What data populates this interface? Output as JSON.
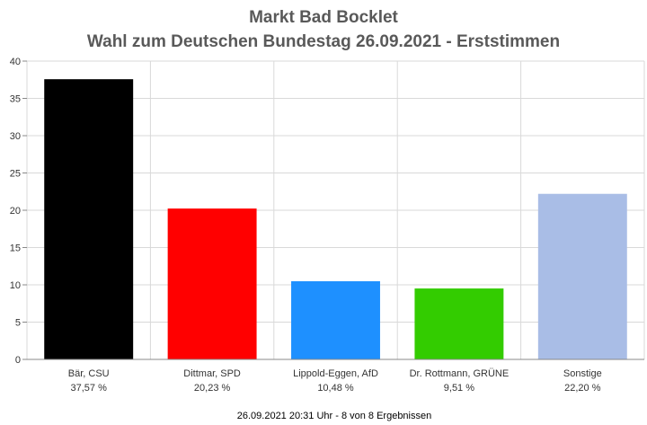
{
  "chart_data": {
    "type": "bar",
    "title": "Markt Bad Bocklet",
    "subtitle": "Wahl zum Deutschen Bundestag 26.09.2021  - Erststimmen",
    "categories": [
      "Bär, CSU",
      "Dittmar, SPD",
      "Lippold-Eggen, AfD",
      "Dr. Rottmann, GRÜNE",
      "Sonstige"
    ],
    "value_labels": [
      "37,57 %",
      "20,23 %",
      "10,48 %",
      "9,51 %",
      "22,20 %"
    ],
    "values": [
      37.57,
      20.23,
      10.48,
      9.51,
      22.2
    ],
    "colors": [
      "#000000",
      "#ff0000",
      "#1e90ff",
      "#33cc00",
      "#a9bde6"
    ],
    "ylim": [
      0,
      40
    ],
    "yticks": [
      0,
      5,
      10,
      15,
      20,
      25,
      30,
      35,
      40
    ],
    "grid": true,
    "legend": "none",
    "footer": "26.09.2021 20:31 Uhr - 8 von 8 Ergebnissen"
  }
}
